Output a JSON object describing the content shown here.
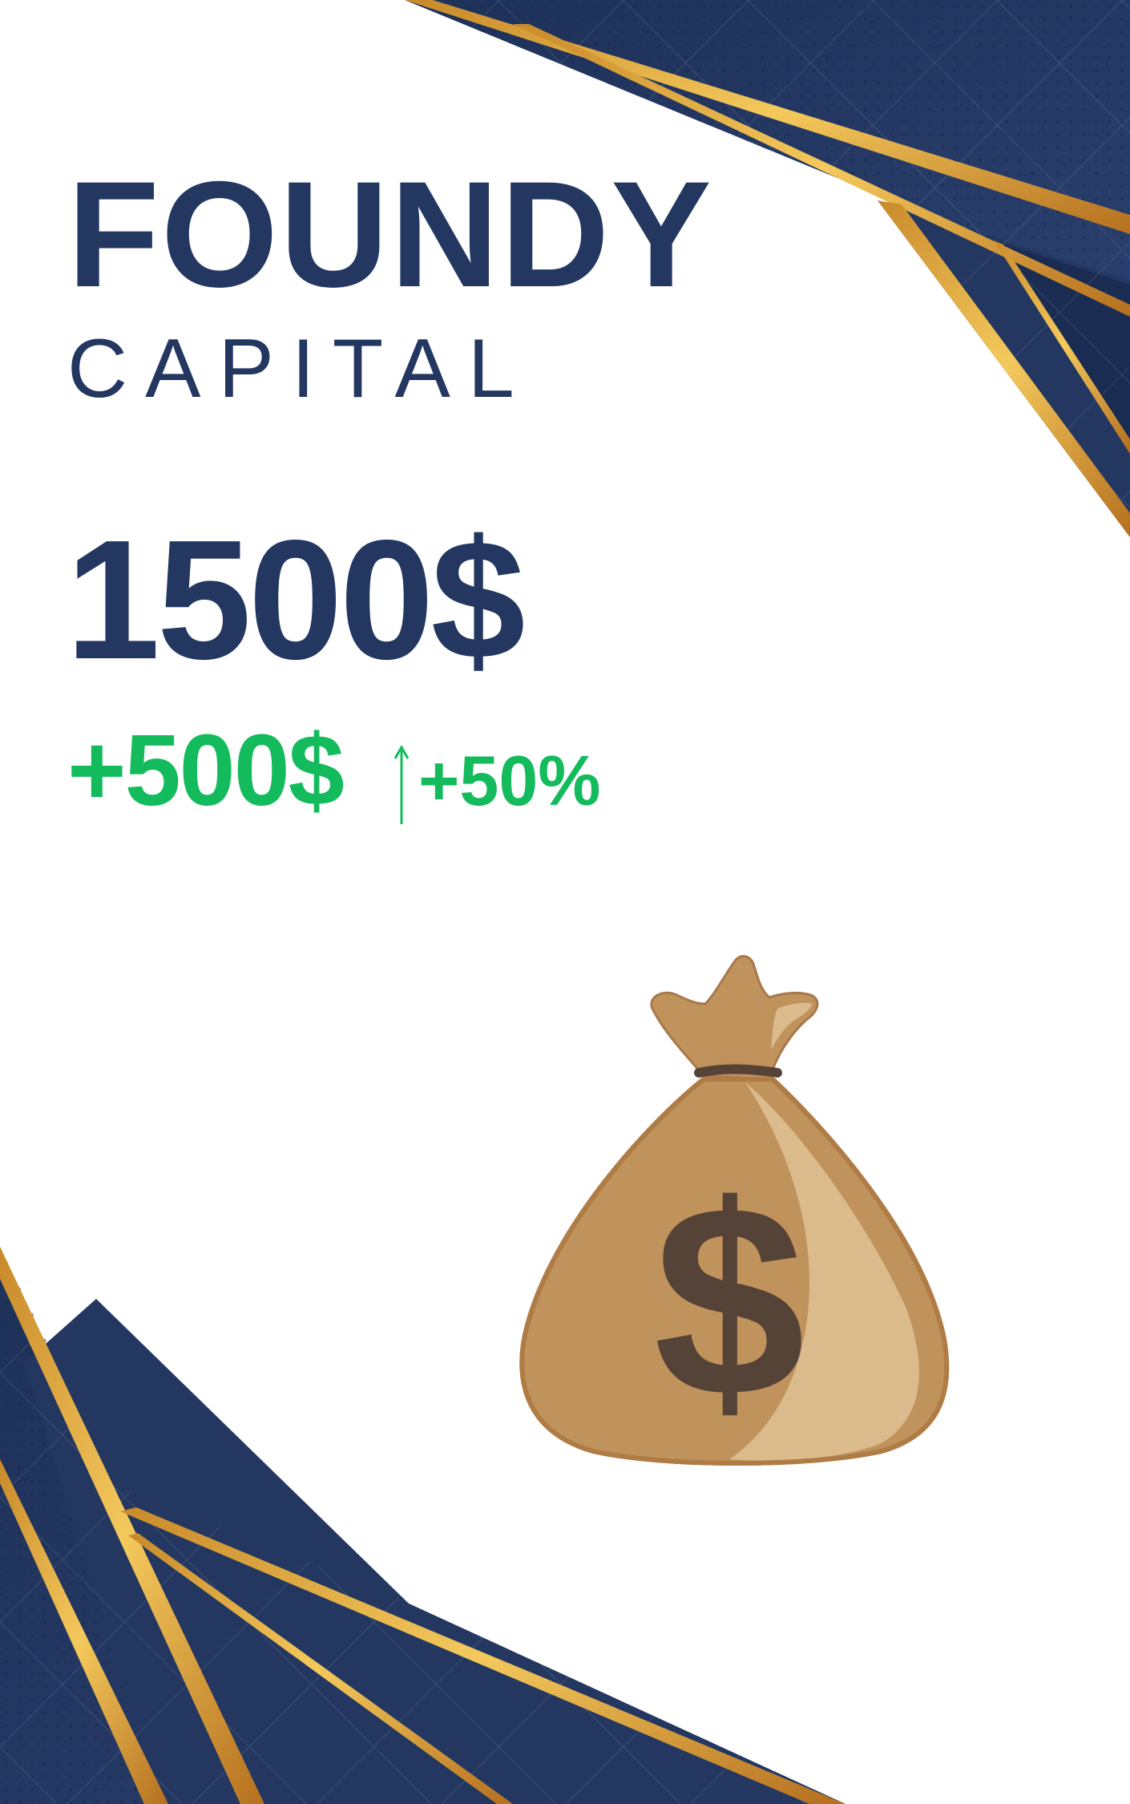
{
  "brand": {
    "name": "FOUNDY",
    "subtitle": "CAPITAL"
  },
  "capital": {
    "amount": "1500$"
  },
  "gain": {
    "amount": "+500$",
    "percent": "+50%",
    "direction_icon": "up-arrow-icon"
  },
  "illustration": {
    "icon": "money-bag-icon",
    "symbol": "$"
  },
  "colors": {
    "navy": "#233761",
    "gold": "#e0a52e",
    "green": "#13bb5c",
    "bag": "#c0925c",
    "bag_light": "#dbbb8c",
    "bag_symbol": "#564337"
  }
}
